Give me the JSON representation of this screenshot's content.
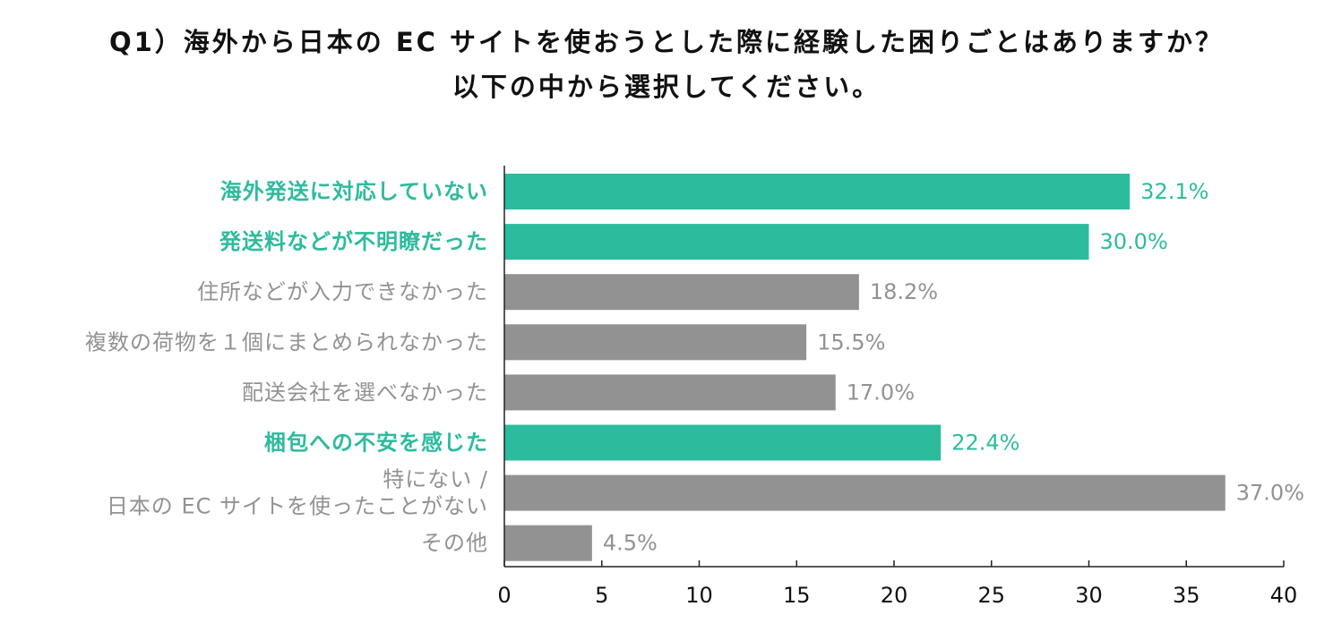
{
  "title": {
    "line1": "Q1）海外から日本の EC サイトを使おうとした際に経験した困りごとはありますか？",
    "line2": "以下の中から選択してください。"
  },
  "colors": {
    "highlight": "#2dbb9e",
    "normal": "#929292",
    "axis": "#222222",
    "title": "#111111"
  },
  "chart_data": {
    "type": "bar",
    "orientation": "horizontal",
    "title": "Q1）海外から日本の EC サイトを使おうとした際に経験した困りごとはありますか？ 以下の中から選択してください。",
    "xlabel": "",
    "ylabel": "",
    "xlim": [
      0,
      40
    ],
    "ticks": [
      0,
      5,
      10,
      15,
      20,
      25,
      30,
      35,
      40
    ],
    "grid": false,
    "categories": [
      {
        "label": [
          "海外発送に対応していない"
        ],
        "value": 32.1,
        "value_label": "32.1%",
        "highlight": true
      },
      {
        "label": [
          "発送料などが不明瞭だった"
        ],
        "value": 30.0,
        "value_label": "30.0%",
        "highlight": true
      },
      {
        "label": [
          "住所などが入力できなかった"
        ],
        "value": 18.2,
        "value_label": "18.2%",
        "highlight": false
      },
      {
        "label": [
          "複数の荷物を１個にまとめられなかった"
        ],
        "value": 15.5,
        "value_label": "15.5%",
        "highlight": false
      },
      {
        "label": [
          "配送会社を選べなかった"
        ],
        "value": 17.0,
        "value_label": "17.0%",
        "highlight": false
      },
      {
        "label": [
          "梱包への不安を感じた"
        ],
        "value": 22.4,
        "value_label": "22.4%",
        "highlight": true
      },
      {
        "label": [
          "特にない /",
          "日本の EC サイトを使ったことがない"
        ],
        "value": 37.0,
        "value_label": "37.0%",
        "highlight": false
      },
      {
        "label": [
          "その他"
        ],
        "value": 4.5,
        "value_label": "4.5%",
        "highlight": false
      }
    ]
  }
}
